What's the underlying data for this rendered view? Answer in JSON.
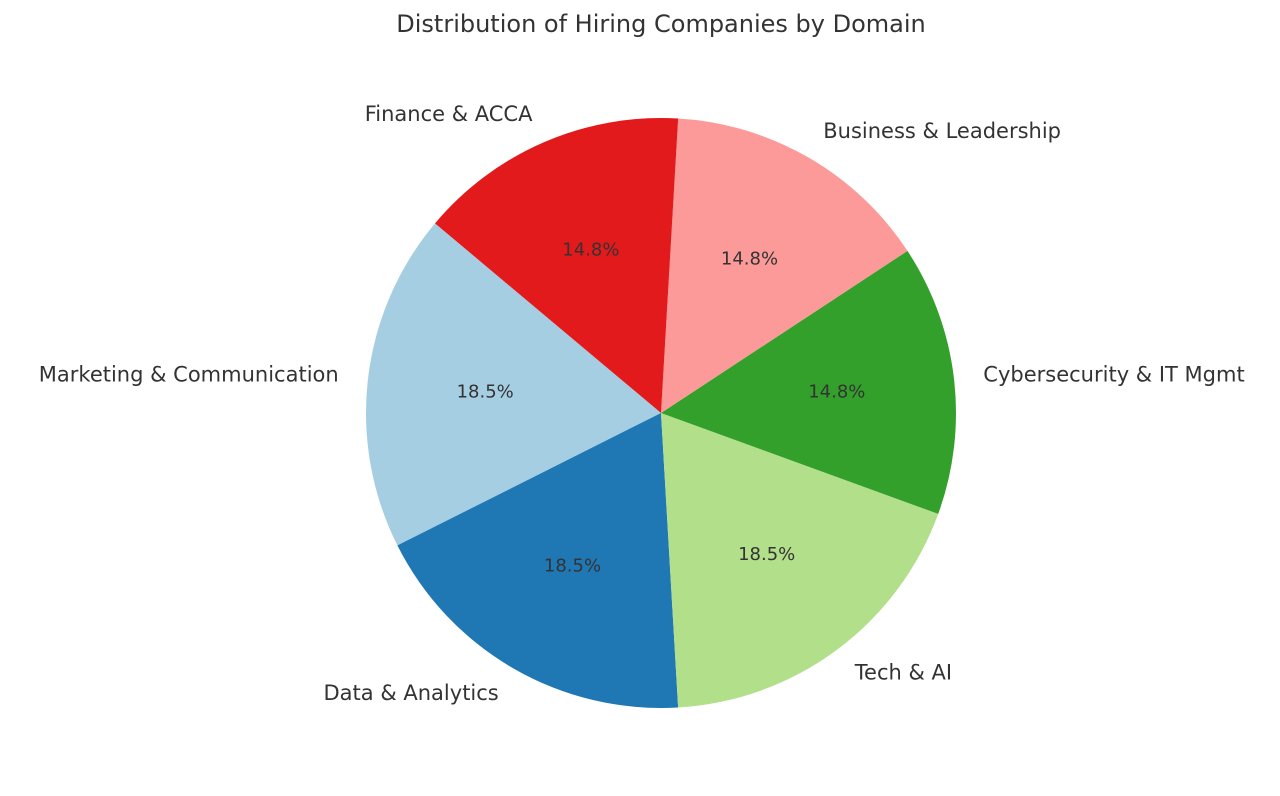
{
  "chart_data": {
    "type": "pie",
    "title": "Distribution of Hiring Companies by Domain",
    "categories": [
      "Marketing & Communication",
      "Data & Analytics",
      "Tech & AI",
      "Cybersecurity & IT Mgmt",
      "Business & Leadership",
      "Finance & ACCA"
    ],
    "values": [
      18.5,
      18.5,
      18.5,
      14.8,
      14.8,
      14.8
    ],
    "value_labels": [
      "18.5%",
      "18.5%",
      "18.5%",
      "14.8%",
      "14.8%",
      "14.8%"
    ],
    "colors": [
      "#a6cee3",
      "#1f78b4",
      "#b2df8a",
      "#33a02c",
      "#fb9a99",
      "#e31a1c"
    ]
  }
}
